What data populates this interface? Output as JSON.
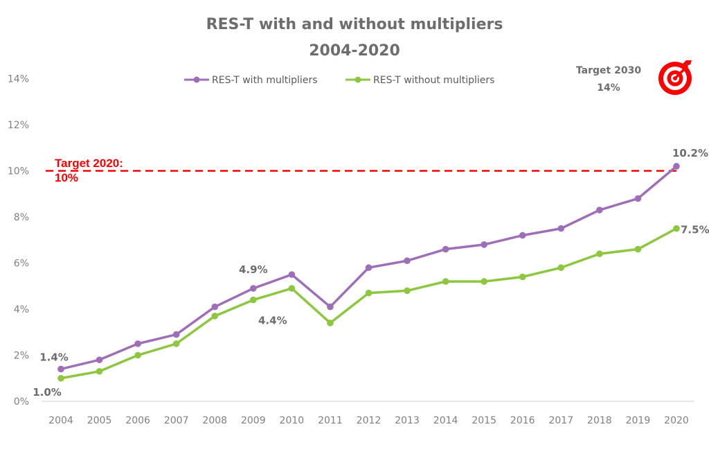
{
  "chart_data": {
    "type": "line",
    "title": "RES-T with and without multipliers",
    "subtitle": "2004-2020",
    "xlabel": "",
    "ylabel": "",
    "ylim": [
      0,
      14
    ],
    "y_ticks": [
      0,
      2,
      4,
      6,
      8,
      10,
      12,
      14
    ],
    "y_tick_labels": [
      "0%",
      "2%",
      "4%",
      "6%",
      "8%",
      "10%",
      "12%",
      "14%"
    ],
    "grid": false,
    "legend_position": "top",
    "categories": [
      "2004",
      "2005",
      "2006",
      "2007",
      "2008",
      "2009",
      "2010",
      "2011",
      "2012",
      "2013",
      "2014",
      "2015",
      "2016",
      "2017",
      "2018",
      "2019",
      "2020"
    ],
    "series": [
      {
        "name": "RES-T with multipliers",
        "color": "#9E6FB8",
        "values": [
          1.4,
          1.8,
          2.5,
          2.9,
          4.1,
          4.9,
          5.5,
          4.1,
          5.8,
          6.1,
          6.6,
          6.8,
          7.2,
          7.5,
          8.3,
          8.8,
          10.2
        ]
      },
      {
        "name": "RES-T without multipliers",
        "color": "#8DC63F",
        "values": [
          1.0,
          1.3,
          2.0,
          2.5,
          3.7,
          4.4,
          4.9,
          3.4,
          4.7,
          4.8,
          5.2,
          5.2,
          5.4,
          5.8,
          6.4,
          6.6,
          7.5
        ]
      }
    ],
    "data_labels": [
      {
        "series": 0,
        "index": 0,
        "text": "1.4%"
      },
      {
        "series": 1,
        "index": 0,
        "text": "1.0%"
      },
      {
        "series": 0,
        "index": 5,
        "text": "4.9%"
      },
      {
        "series": 1,
        "index": 5,
        "text": "4.4%"
      },
      {
        "series": 0,
        "index": 16,
        "text": "10.2%"
      },
      {
        "series": 1,
        "index": 16,
        "text": "7.5%"
      }
    ],
    "reference_line": {
      "value": 10,
      "color": "#FF0000",
      "label_line1": "Target 2020:",
      "label_line2": "10%"
    },
    "annotation": {
      "line1": "Target 2030",
      "line2": "14%",
      "icon": "target-bullseye-icon",
      "icon_color": "#FF0000"
    }
  }
}
